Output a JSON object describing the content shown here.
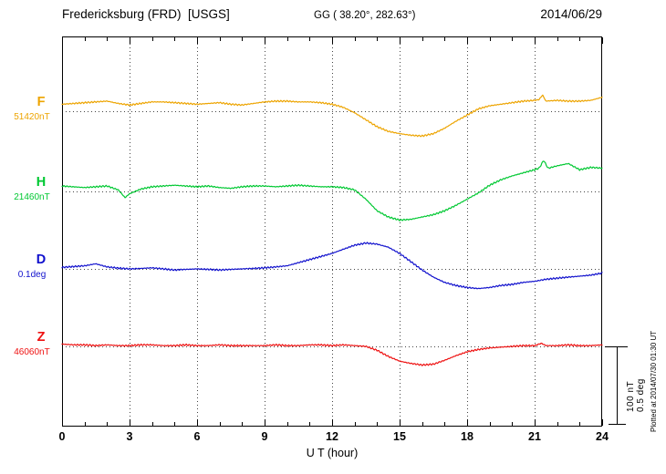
{
  "chart_data": {
    "type": "line",
    "title": "Fredericksburg (FRD)  [USGS]",
    "gg_coords": "GG ( 38.20°, 282.63°)",
    "date": "2014/06/29",
    "xlabel": "U T (hour)",
    "x_range": [
      0,
      24
    ],
    "x_tick_hours": [
      0,
      3,
      6,
      9,
      12,
      15,
      18,
      21,
      24
    ],
    "x_tick_labels": [
      "0",
      "3",
      "6",
      "9",
      "12",
      "15",
      "18",
      "21",
      "24"
    ],
    "grid_hours": [
      3,
      6,
      9,
      12,
      15,
      18,
      21
    ],
    "grid": "dotted vertical lines every 3 hours and dotted horizontal baselines",
    "scale_bar": {
      "nt": "100 nT",
      "deg": "0.5 deg"
    },
    "plotted_at": "Plotted at 2014/07/30 01:30 UT",
    "series": [
      {
        "id": "F",
        "label": "F",
        "baseline_label": "51420nT",
        "unit": "nT",
        "color": "#eda400",
        "points": [
          [
            0,
            9
          ],
          [
            0.5,
            10
          ],
          [
            1,
            11
          ],
          [
            1.5,
            12
          ],
          [
            2,
            13
          ],
          [
            2.5,
            10
          ],
          [
            3,
            8
          ],
          [
            3.5,
            10
          ],
          [
            4,
            12
          ],
          [
            4.5,
            12
          ],
          [
            5,
            11
          ],
          [
            5.5,
            10
          ],
          [
            6,
            9
          ],
          [
            6.5,
            10
          ],
          [
            7,
            11
          ],
          [
            7.5,
            9
          ],
          [
            8,
            8
          ],
          [
            8.5,
            10
          ],
          [
            9,
            12
          ],
          [
            9.5,
            13
          ],
          [
            10,
            13
          ],
          [
            10.5,
            12
          ],
          [
            11,
            12
          ],
          [
            11.5,
            11
          ],
          [
            12,
            9
          ],
          [
            12.5,
            5
          ],
          [
            13,
            -2
          ],
          [
            13.5,
            -11
          ],
          [
            14,
            -20
          ],
          [
            14.5,
            -26
          ],
          [
            15,
            -29
          ],
          [
            15.5,
            -31
          ],
          [
            16,
            -32
          ],
          [
            16.5,
            -29
          ],
          [
            17,
            -22
          ],
          [
            17.5,
            -13
          ],
          [
            18,
            -5
          ],
          [
            18.5,
            3
          ],
          [
            19,
            7
          ],
          [
            19.5,
            9
          ],
          [
            20,
            11
          ],
          [
            20.5,
            13
          ],
          [
            21,
            14
          ],
          [
            21.2,
            15
          ],
          [
            21.35,
            21
          ],
          [
            21.5,
            13
          ],
          [
            22,
            14
          ],
          [
            22.5,
            13
          ],
          [
            23,
            13
          ],
          [
            23.5,
            14
          ],
          [
            24,
            18
          ]
        ]
      },
      {
        "id": "H",
        "label": "H",
        "baseline_label": "21460nT",
        "unit": "nT",
        "color": "#00c832",
        "points": [
          [
            0,
            7
          ],
          [
            0.5,
            6
          ],
          [
            1,
            5
          ],
          [
            1.5,
            6
          ],
          [
            2,
            7
          ],
          [
            2.5,
            2
          ],
          [
            2.8,
            -8
          ],
          [
            3,
            -3
          ],
          [
            3.5,
            3
          ],
          [
            4,
            6
          ],
          [
            4.5,
            7
          ],
          [
            5,
            8
          ],
          [
            5.5,
            7
          ],
          [
            6,
            6
          ],
          [
            6.5,
            7
          ],
          [
            7,
            5
          ],
          [
            7.5,
            4
          ],
          [
            8,
            6
          ],
          [
            8.5,
            7
          ],
          [
            9,
            7
          ],
          [
            9.5,
            6
          ],
          [
            10,
            7
          ],
          [
            10.5,
            8
          ],
          [
            11,
            7
          ],
          [
            11.5,
            6
          ],
          [
            12,
            6
          ],
          [
            12.5,
            5
          ],
          [
            13,
            2
          ],
          [
            13.5,
            -10
          ],
          [
            14,
            -25
          ],
          [
            14.5,
            -33
          ],
          [
            15,
            -37
          ],
          [
            15.5,
            -36
          ],
          [
            16,
            -33
          ],
          [
            16.5,
            -30
          ],
          [
            17,
            -25
          ],
          [
            17.5,
            -18
          ],
          [
            18,
            -10
          ],
          [
            18.5,
            -2
          ],
          [
            19,
            8
          ],
          [
            19.5,
            15
          ],
          [
            20,
            20
          ],
          [
            20.5,
            24
          ],
          [
            21,
            28
          ],
          [
            21.2,
            30
          ],
          [
            21.4,
            40
          ],
          [
            21.6,
            30
          ],
          [
            22,
            33
          ],
          [
            22.5,
            36
          ],
          [
            23,
            28
          ],
          [
            23.5,
            31
          ],
          [
            24,
            30
          ]
        ]
      },
      {
        "id": "D",
        "label": "D",
        "baseline_label": "0.1deg",
        "unit": "deg",
        "color": "#1010cd",
        "points": [
          [
            0,
            0.01
          ],
          [
            0.5,
            0.015
          ],
          [
            1,
            0.02
          ],
          [
            1.5,
            0.033
          ],
          [
            2,
            0.013
          ],
          [
            2.5,
            0.005
          ],
          [
            3,
            0
          ],
          [
            3.5,
            0.003
          ],
          [
            4,
            0.007
          ],
          [
            4.5,
            0
          ],
          [
            5,
            -0.007
          ],
          [
            5.5,
            -0.003
          ],
          [
            6,
            0
          ],
          [
            6.5,
            -0.003
          ],
          [
            7,
            -0.007
          ],
          [
            7.5,
            -0.003
          ],
          [
            8,
            0
          ],
          [
            8.5,
            0.003
          ],
          [
            9,
            0.007
          ],
          [
            9.5,
            0.013
          ],
          [
            10,
            0.02
          ],
          [
            10.5,
            0.04
          ],
          [
            11,
            0.06
          ],
          [
            11.5,
            0.08
          ],
          [
            12,
            0.1
          ],
          [
            12.5,
            0.127
          ],
          [
            13,
            0.153
          ],
          [
            13.5,
            0.167
          ],
          [
            14,
            0.16
          ],
          [
            14.5,
            0.14
          ],
          [
            15,
            0.1
          ],
          [
            15.5,
            0.047
          ],
          [
            16,
            -0.007
          ],
          [
            16.5,
            -0.053
          ],
          [
            17,
            -0.087
          ],
          [
            17.5,
            -0.107
          ],
          [
            18,
            -0.12
          ],
          [
            18.5,
            -0.127
          ],
          [
            19,
            -0.12
          ],
          [
            19.5,
            -0.107
          ],
          [
            20,
            -0.1
          ],
          [
            20.5,
            -0.087
          ],
          [
            21,
            -0.08
          ],
          [
            21.5,
            -0.067
          ],
          [
            22,
            -0.06
          ],
          [
            22.5,
            -0.053
          ],
          [
            23,
            -0.047
          ],
          [
            23.5,
            -0.04
          ],
          [
            24,
            -0.027
          ]
        ]
      },
      {
        "id": "Z",
        "label": "Z",
        "baseline_label": "46060nT",
        "unit": "nT",
        "color": "#ee1111",
        "points": [
          [
            0,
            3
          ],
          [
            0.5,
            2
          ],
          [
            1,
            2
          ],
          [
            1.5,
            1
          ],
          [
            2,
            2
          ],
          [
            2.5,
            1
          ],
          [
            3,
            1
          ],
          [
            3.5,
            2
          ],
          [
            4,
            2
          ],
          [
            4.5,
            1
          ],
          [
            5,
            1
          ],
          [
            5.5,
            2
          ],
          [
            6,
            1
          ],
          [
            6.5,
            1
          ],
          [
            7,
            2
          ],
          [
            7.5,
            1
          ],
          [
            8,
            1
          ],
          [
            8.5,
            1
          ],
          [
            9,
            1
          ],
          [
            9.5,
            2
          ],
          [
            10,
            1
          ],
          [
            10.5,
            1
          ],
          [
            11,
            2
          ],
          [
            11.5,
            2
          ],
          [
            12,
            1
          ],
          [
            12.5,
            2
          ],
          [
            13,
            1
          ],
          [
            13.5,
            0
          ],
          [
            14,
            -5
          ],
          [
            14.5,
            -13
          ],
          [
            15,
            -19
          ],
          [
            15.5,
            -22
          ],
          [
            16,
            -24
          ],
          [
            16.5,
            -23
          ],
          [
            17,
            -18
          ],
          [
            17.5,
            -12
          ],
          [
            18,
            -7
          ],
          [
            18.5,
            -4
          ],
          [
            19,
            -2
          ],
          [
            19.5,
            -1
          ],
          [
            20,
            0
          ],
          [
            20.5,
            1
          ],
          [
            21,
            1
          ],
          [
            21.3,
            4
          ],
          [
            21.5,
            1
          ],
          [
            22,
            1
          ],
          [
            22.5,
            2
          ],
          [
            23,
            1
          ],
          [
            23.5,
            1
          ],
          [
            24,
            2
          ]
        ]
      }
    ]
  }
}
